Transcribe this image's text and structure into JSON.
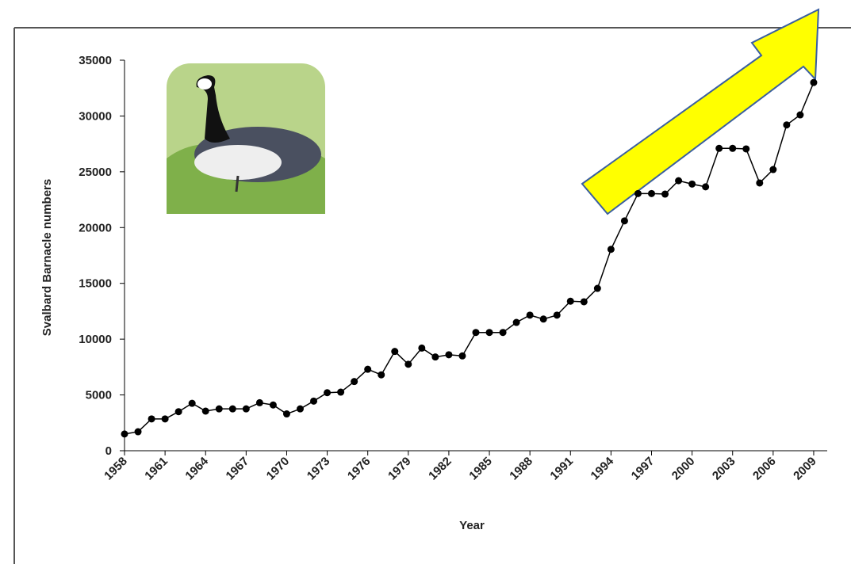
{
  "chart_data": {
    "type": "line",
    "x_label": "Year",
    "y_label": "Svalbard Barnacle numbers",
    "x": [
      1958,
      1959,
      1960,
      1961,
      1962,
      1963,
      1964,
      1965,
      1966,
      1967,
      1968,
      1969,
      1970,
      1971,
      1972,
      1973,
      1974,
      1975,
      1976,
      1977,
      1978,
      1979,
      1980,
      1981,
      1982,
      1983,
      1984,
      1985,
      1986,
      1987,
      1988,
      1989,
      1990,
      1991,
      1992,
      1993,
      1994,
      1995,
      1996,
      1997,
      1998,
      1999,
      2000,
      2001,
      2002,
      2003,
      2004,
      2005,
      2006,
      2007,
      2008,
      2009
    ],
    "values": [
      1500,
      1700,
      2850,
      2850,
      3500,
      4250,
      3550,
      3750,
      3750,
      3750,
      4300,
      4100,
      3300,
      3750,
      4450,
      5200,
      5250,
      6200,
      7300,
      6800,
      8900,
      7750,
      9200,
      8400,
      8600,
      8500,
      10600,
      10600,
      10600,
      11500,
      12150,
      11800,
      12150,
      13400,
      13350,
      14550,
      18050,
      20600,
      23050,
      23050,
      23000,
      24200,
      23900,
      23650,
      27100,
      27100,
      27050,
      24000,
      25200,
      29200,
      30100,
      33000
    ],
    "color": "#000000",
    "xlim": [
      1958,
      2010
    ],
    "ylim": [
      0,
      35000
    ],
    "xticks": [
      1958,
      1961,
      1964,
      1967,
      1970,
      1973,
      1976,
      1979,
      1982,
      1985,
      1988,
      1991,
      1994,
      1997,
      2000,
      2003,
      2006,
      2009
    ],
    "yticks": [
      0,
      5000,
      10000,
      15000,
      20000,
      25000,
      30000,
      35000
    ],
    "grid": false
  }
}
